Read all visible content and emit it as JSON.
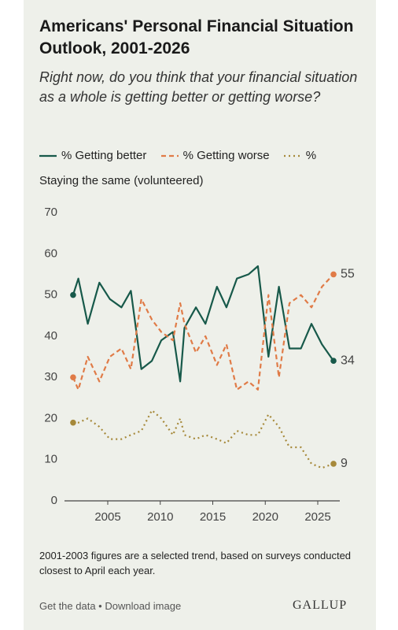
{
  "chart_data": {
    "type": "line",
    "title": "Americans' Personal Financial Situation Outlook, 2001-2026",
    "subtitle": "Right now, do you think that your financial situation as a whole is getting better or getting worse?",
    "x": [
      2001.7,
      2002.2,
      2003.1,
      2004.2,
      2005.2,
      2006.3,
      2007.2,
      2008.2,
      2009.2,
      2010.1,
      2011.2,
      2011.9,
      2012.3,
      2013.4,
      2014.3,
      2015.4,
      2016.3,
      2017.3,
      2018.4,
      2019.3,
      2020.3,
      2021.3,
      2022.3,
      2023.4,
      2024.4,
      2025.4,
      2026.5
    ],
    "series": [
      {
        "name": "% Getting better",
        "color": "#17594a",
        "dash": "solid",
        "values": [
          50,
          54,
          43,
          53,
          49,
          47,
          51,
          32,
          34,
          39,
          41,
          29,
          42,
          47,
          43,
          52,
          47,
          54,
          55,
          57,
          35,
          52,
          37,
          37,
          43,
          38,
          34
        ]
      },
      {
        "name": "% Getting worse",
        "color": "#e07b47",
        "dash": "dashed",
        "values": [
          30,
          27,
          35,
          29,
          35,
          37,
          32,
          49,
          44,
          41,
          39,
          48,
          43,
          36,
          40,
          33,
          38,
          27,
          29,
          27,
          50,
          30,
          48,
          50,
          47,
          52,
          55
        ]
      },
      {
        "name": "% Staying the same (volunteered)",
        "color": "#a6893a",
        "dash": "dotted",
        "values": [
          19,
          19,
          20,
          18,
          15,
          15,
          16,
          17,
          22,
          20,
          16,
          20,
          16,
          15,
          16,
          15,
          14,
          17,
          16,
          16,
          21,
          18,
          13,
          13,
          9,
          8,
          9
        ]
      }
    ],
    "xlim": [
      2000,
      2027
    ],
    "xticks": [
      2005,
      2010,
      2015,
      2020,
      2025
    ],
    "ylim": [
      0,
      70
    ],
    "yticks": [
      0,
      10,
      20,
      30,
      40,
      50,
      60,
      70
    ],
    "grid": false,
    "note": "2001-2003 figures are a selected trend, based on surveys conducted closest to April each year.",
    "footer": [
      "Get the data",
      "Download image"
    ],
    "logo": "GALLUP"
  }
}
